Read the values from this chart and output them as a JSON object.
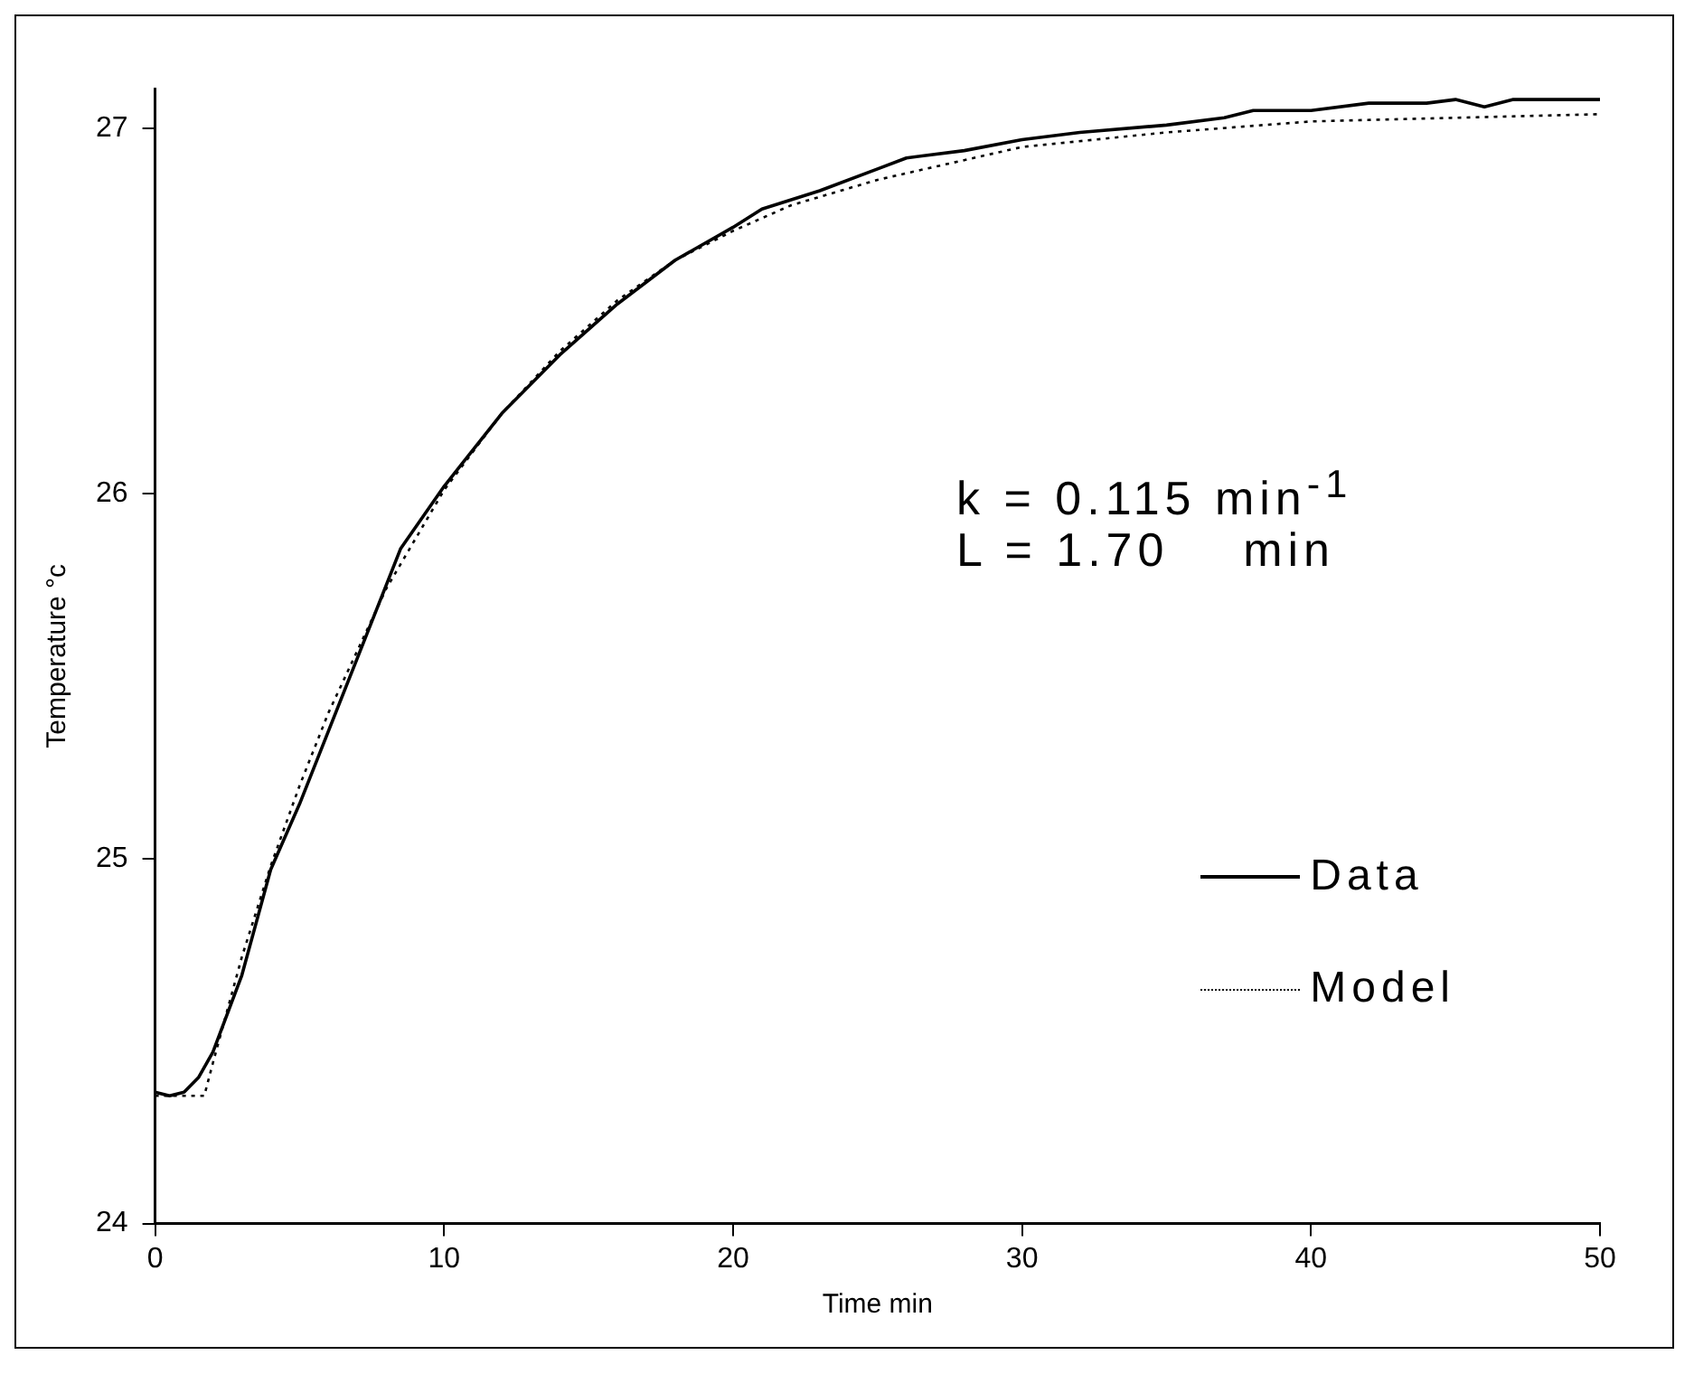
{
  "chart_data": {
    "type": "line",
    "xlabel": "Time min",
    "ylabel": "Temperature °c",
    "xlim": [
      0,
      50
    ],
    "xticks": [
      0,
      10,
      20,
      30,
      40,
      50
    ],
    "ylim": [
      24,
      27.11
    ],
    "yticks": [
      24,
      25,
      26,
      27
    ],
    "grid": false,
    "legend": "bottom right",
    "marker": "none",
    "annotations": [
      "k = 0.115 min$^{-1}$",
      "L = 1.70    min"
    ],
    "series": [
      {
        "name": "Data",
        "color": "#000000",
        "line_style": "solid",
        "x": [
          0,
          0.5,
          1,
          1.5,
          2,
          3,
          4,
          5,
          6,
          7,
          8,
          8.5,
          10,
          12,
          14,
          16,
          17,
          18,
          20,
          21,
          23,
          25,
          26,
          28,
          30,
          32,
          35,
          37,
          38,
          40,
          42,
          44,
          45,
          46,
          47,
          50
        ],
        "values": [
          24.36,
          24.35,
          24.36,
          24.4,
          24.47,
          24.68,
          24.97,
          25.15,
          25.35,
          25.55,
          25.75,
          25.85,
          26.02,
          26.22,
          26.38,
          26.52,
          26.58,
          26.64,
          26.73,
          26.78,
          26.83,
          26.89,
          26.92,
          26.94,
          26.97,
          26.99,
          27.01,
          27.03,
          27.05,
          27.05,
          27.07,
          27.07,
          27.08,
          27.06,
          27.08,
          27.08
        ]
      },
      {
        "name": "Model",
        "color": "#000000",
        "line_style": "dotted",
        "x": [
          0,
          1,
          1.7,
          2,
          3,
          4,
          5,
          6,
          8,
          10,
          12,
          14,
          16,
          18,
          20,
          22,
          25,
          30,
          35,
          40,
          45,
          50
        ],
        "values": [
          24.35,
          24.35,
          24.35,
          24.44,
          24.73,
          24.98,
          25.2,
          25.4,
          25.74,
          26.01,
          26.22,
          26.39,
          26.53,
          26.64,
          26.72,
          26.79,
          26.86,
          26.95,
          26.99,
          27.02,
          27.03,
          27.04
        ]
      }
    ]
  }
}
